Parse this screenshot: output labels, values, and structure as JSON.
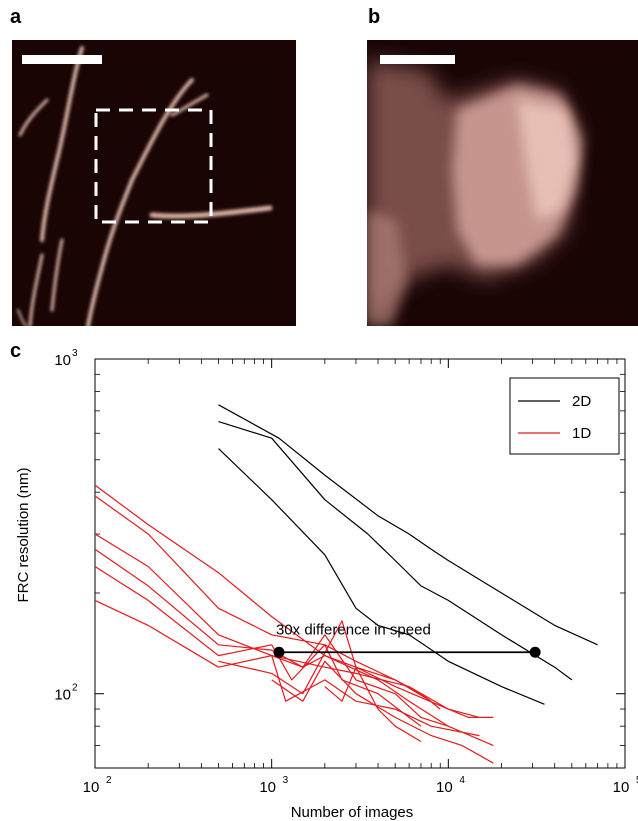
{
  "panels": {
    "a": {
      "label": "a"
    },
    "b": {
      "label": "b"
    },
    "c": {
      "label": "c"
    }
  },
  "colors": {
    "background_dark": "#1a0505",
    "filament": "#f0c8b8",
    "series_2d": "#000000",
    "series_1d": "#e41a1c"
  },
  "chart_data": {
    "type": "line",
    "title": "",
    "xlabel": "Number of images",
    "ylabel": "FRC resolution (nm)",
    "xscale": "log",
    "yscale": "log",
    "xlim": [
      100,
      100000
    ],
    "ylim": [
      60,
      1000
    ],
    "x_ticks": [
      100,
      1000,
      10000,
      100000
    ],
    "x_tick_labels": [
      {
        "base": "10",
        "exp": "2"
      },
      {
        "base": "10",
        "exp": "3"
      },
      {
        "base": "10",
        "exp": "4"
      },
      {
        "base": "10",
        "exp": "5"
      }
    ],
    "y_ticks": [
      100,
      1000
    ],
    "y_tick_labels": [
      {
        "base": "10",
        "exp": "2"
      },
      {
        "base": "10",
        "exp": "3"
      }
    ],
    "legend": {
      "position": "top-right",
      "entries": [
        {
          "label": "2D",
          "color": "#000000"
        },
        {
          "label": "1D",
          "color": "#e41a1c"
        }
      ]
    },
    "annotation": {
      "text": "30x difference in speed",
      "points": [
        [
          1100,
          133
        ],
        [
          31000,
          133
        ]
      ]
    },
    "series": [
      {
        "group": "2D",
        "color": "#000000",
        "points": [
          [
            500,
            730
          ],
          [
            1100,
            580
          ],
          [
            2000,
            450
          ],
          [
            4000,
            340
          ],
          [
            6000,
            300
          ],
          [
            8000,
            270
          ],
          [
            10000,
            250
          ],
          [
            20000,
            200
          ],
          [
            40000,
            160
          ],
          [
            70000,
            140
          ]
        ]
      },
      {
        "group": "2D",
        "color": "#000000",
        "points": [
          [
            500,
            650
          ],
          [
            1000,
            580
          ],
          [
            2000,
            380
          ],
          [
            3500,
            300
          ],
          [
            5000,
            250
          ],
          [
            7000,
            210
          ],
          [
            10000,
            190
          ],
          [
            20000,
            150
          ],
          [
            40000,
            120
          ],
          [
            50000,
            110
          ]
        ]
      },
      {
        "group": "2D",
        "color": "#000000",
        "points": [
          [
            500,
            540
          ],
          [
            1000,
            380
          ],
          [
            2000,
            260
          ],
          [
            3000,
            180
          ],
          [
            4000,
            160
          ],
          [
            6000,
            150
          ],
          [
            10000,
            125
          ],
          [
            20000,
            105
          ],
          [
            35000,
            93
          ]
        ]
      },
      {
        "group": "1D",
        "color": "#e41a1c",
        "points": [
          [
            100,
            420
          ],
          [
            200,
            320
          ],
          [
            500,
            230
          ],
          [
            1000,
            170
          ],
          [
            2000,
            130
          ],
          [
            3000,
            120
          ],
          [
            5000,
            110
          ],
          [
            7000,
            100
          ],
          [
            9000,
            90
          ]
        ]
      },
      {
        "group": "1D",
        "color": "#e41a1c",
        "points": [
          [
            100,
            390
          ],
          [
            200,
            300
          ],
          [
            500,
            180
          ],
          [
            1000,
            150
          ],
          [
            2000,
            140
          ],
          [
            3000,
            125
          ],
          [
            5000,
            110
          ],
          [
            8000,
            95
          ]
        ]
      },
      {
        "group": "1D",
        "color": "#e41a1c",
        "points": [
          [
            100,
            300
          ],
          [
            200,
            240
          ],
          [
            500,
            150
          ],
          [
            1000,
            130
          ],
          [
            2000,
            120
          ],
          [
            3000,
            115
          ],
          [
            6000,
            105
          ],
          [
            10000,
            90
          ],
          [
            15000,
            85
          ]
        ]
      },
      {
        "group": "1D",
        "color": "#e41a1c",
        "points": [
          [
            100,
            270
          ],
          [
            200,
            210
          ],
          [
            500,
            140
          ],
          [
            1000,
            135
          ],
          [
            1500,
            120
          ],
          [
            2000,
            150
          ],
          [
            3000,
            110
          ],
          [
            5000,
            100
          ],
          [
            7000,
            85
          ],
          [
            10000,
            80
          ]
        ]
      },
      {
        "group": "1D",
        "color": "#e41a1c",
        "points": [
          [
            100,
            240
          ],
          [
            200,
            190
          ],
          [
            500,
            130
          ],
          [
            1000,
            140
          ],
          [
            1300,
            110
          ],
          [
            2000,
            140
          ],
          [
            2500,
            110
          ],
          [
            4000,
            100
          ],
          [
            6000,
            85
          ],
          [
            7000,
            80
          ]
        ]
      },
      {
        "group": "1D",
        "color": "#e41a1c",
        "points": [
          [
            100,
            190
          ],
          [
            200,
            160
          ],
          [
            500,
            120
          ],
          [
            1000,
            130
          ],
          [
            1200,
            95
          ],
          [
            2000,
            110
          ],
          [
            3000,
            95
          ],
          [
            5000,
            90
          ],
          [
            8000,
            80
          ],
          [
            15000,
            75
          ]
        ]
      },
      {
        "group": "1D",
        "color": "#e41a1c",
        "points": [
          [
            500,
            125
          ],
          [
            1000,
            115
          ],
          [
            1500,
            100
          ],
          [
            2500,
            165
          ],
          [
            3000,
            120
          ],
          [
            5000,
            105
          ],
          [
            10000,
            90
          ],
          [
            13000,
            85
          ],
          [
            18000,
            85
          ]
        ]
      },
      {
        "group": "1D",
        "color": "#e41a1c",
        "points": [
          [
            1000,
            130
          ],
          [
            1500,
            120
          ],
          [
            2000,
            130
          ],
          [
            4000,
            110
          ],
          [
            6000,
            95
          ],
          [
            10000,
            80
          ],
          [
            18000,
            70
          ]
        ]
      },
      {
        "group": "1D",
        "color": "#e41a1c",
        "points": [
          [
            1000,
            110
          ],
          [
            1500,
            95
          ],
          [
            2000,
            125
          ],
          [
            3000,
            100
          ],
          [
            5000,
            85
          ],
          [
            8000,
            75
          ],
          [
            12000,
            70
          ],
          [
            18000,
            62
          ]
        ]
      },
      {
        "group": "1D",
        "color": "#e41a1c",
        "points": [
          [
            2000,
            105
          ],
          [
            2500,
            95
          ],
          [
            3000,
            120
          ],
          [
            4000,
            90
          ],
          [
            5000,
            80
          ],
          [
            7000,
            72
          ]
        ]
      }
    ]
  }
}
